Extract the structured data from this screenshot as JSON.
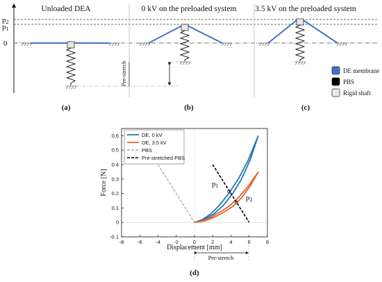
{
  "top": {
    "titles": [
      "Unloaded DEA",
      "0 kV on the preloaded system",
      "3.5 kV on the preloaded system"
    ],
    "y_labels": {
      "p2": "p",
      "p2_sub": "2",
      "p1": "p",
      "p1_sub": "1",
      "zero": "0"
    },
    "prestretch_label": "Pre-stretch",
    "panel_labels": [
      "(a)",
      "(b)",
      "(c)"
    ],
    "legend": [
      {
        "label": "DE membrane",
        "color": "#4472c4"
      },
      {
        "label": "PBS",
        "color": "#000000"
      },
      {
        "label": "Rigid shaft",
        "color": "#e8e8e8"
      }
    ]
  },
  "plot": {
    "panel_label": "(d)",
    "xlabel": "Displacement [mm]",
    "ylabel": "Force [N]",
    "xticks": [
      "-8",
      "-6",
      "-4",
      "-2",
      "0",
      "2",
      "4",
      "6",
      "8"
    ],
    "yticks": [
      "-0.1",
      "0",
      "0.1",
      "0.2",
      "0.3",
      "0.4",
      "0.5",
      "0.6"
    ],
    "prestretch_label": "Pre-stretch",
    "p1_label": "p",
    "p1_sub": "1",
    "p2_label": "p",
    "p2_sub": "2",
    "legend": [
      {
        "label": "DE, 0 kV",
        "color": "#1f77b4",
        "style": "solid"
      },
      {
        "label": "DE, 3.5 kV",
        "color": "#e8632a",
        "style": "solid"
      },
      {
        "label": "PBS",
        "color": "#999999",
        "style": "dashed"
      },
      {
        "label": "Pre-stretched PBS",
        "color": "#000000",
        "style": "dashed"
      }
    ]
  },
  "chart_data": {
    "type": "line",
    "xlabel": "Displacement [mm]",
    "ylabel": "Force [N]",
    "xlim": [
      -8,
      8
    ],
    "ylim": [
      -0.1,
      0.65
    ],
    "series": [
      {
        "name": "DE, 0 kV",
        "x": [
          0,
          1,
          2,
          3,
          4,
          5,
          6,
          7
        ],
        "y": [
          0,
          0.02,
          0.06,
          0.12,
          0.2,
          0.3,
          0.43,
          0.6
        ]
      },
      {
        "name": "DE, 3.5 kV",
        "x": [
          0,
          1,
          2,
          3,
          4,
          5,
          6,
          7
        ],
        "y": [
          0,
          0.01,
          0.035,
          0.07,
          0.11,
          0.17,
          0.25,
          0.35
        ]
      },
      {
        "name": "PBS",
        "x": [
          -4,
          0
        ],
        "y": [
          0.4,
          0
        ]
      },
      {
        "name": "Pre-stretched PBS",
        "x": [
          2,
          6
        ],
        "y": [
          0.4,
          0
        ]
      }
    ]
  }
}
